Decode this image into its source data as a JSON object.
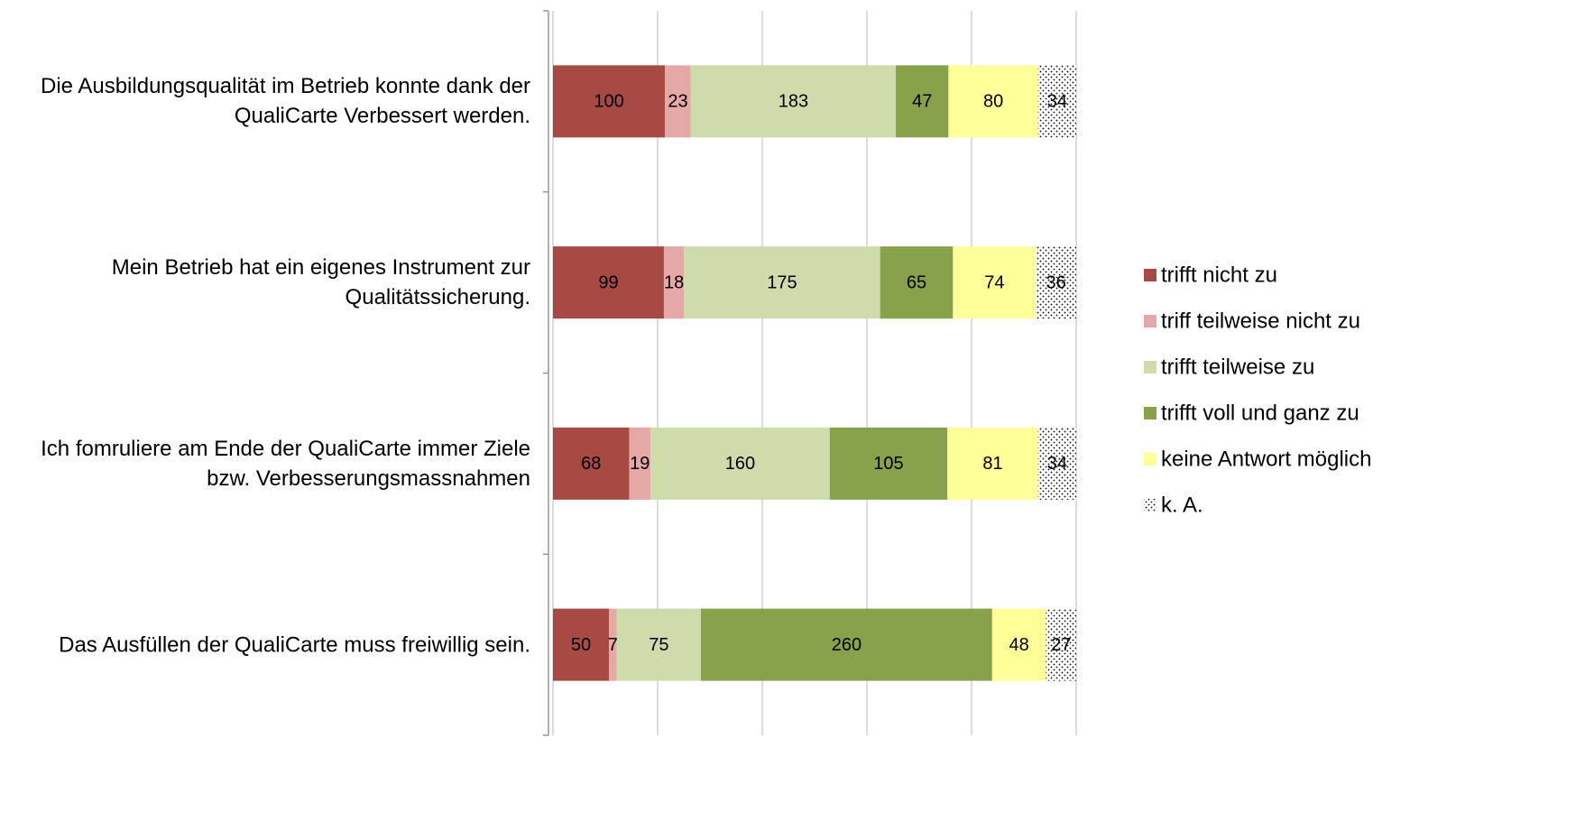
{
  "chart_data": {
    "type": "bar",
    "orientation": "horizontal",
    "stack": "percent",
    "categories": [
      "Die Ausbildungsqualität im Betrieb konnte dank der QualiCarte Verbessert werden.",
      "Mein Betrieb hat ein eigenes Instrument zur Qualitätssicherung.",
      "Ich fomruliere am Ende der QualiCarte immer Ziele bzw. Verbesserungsmassnahmen",
      "Das Ausfüllen der QualiCarte muss freiwillig sein."
    ],
    "series": [
      {
        "name": "trifft nicht zu",
        "color": "#a84a44",
        "values": [
          100,
          99,
          68,
          50
        ]
      },
      {
        "name": "triff teilweise nicht zu",
        "color": "#e6a8a6",
        "values": [
          23,
          18,
          19,
          7
        ]
      },
      {
        "name": "trifft teilweise zu",
        "color": "#cddcaa",
        "values": [
          183,
          175,
          160,
          75
        ]
      },
      {
        "name": "trifft voll und ganz zu",
        "color": "#88a24c",
        "values": [
          47,
          65,
          105,
          260
        ]
      },
      {
        "name": "keine Antwort möglich",
        "color": "#ffff99",
        "values": [
          80,
          74,
          81,
          48
        ]
      },
      {
        "name": "k. A.",
        "color": "#000000",
        "pattern": "dots",
        "values": [
          34,
          36,
          34,
          27
        ]
      }
    ],
    "xlim": [
      0,
      100
    ],
    "xticks": [
      0,
      20,
      40,
      60,
      80,
      100
    ],
    "grid": true,
    "legend": "right"
  }
}
